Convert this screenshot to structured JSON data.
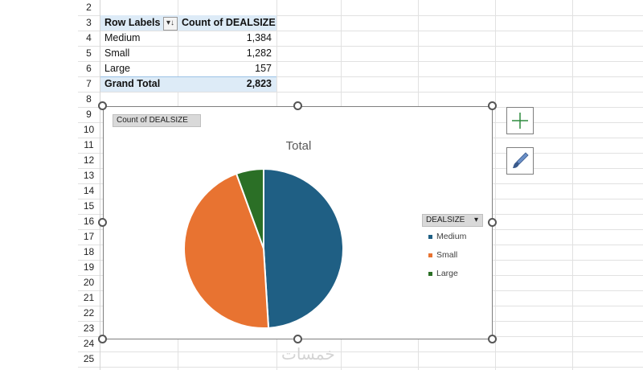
{
  "row_headers": [
    "2",
    "3",
    "4",
    "5",
    "6",
    "7",
    "8",
    "9",
    "10",
    "11",
    "12",
    "13",
    "14",
    "15",
    "16",
    "17",
    "18",
    "19",
    "20",
    "21",
    "22",
    "23",
    "24",
    "25"
  ],
  "pivot": {
    "header_label": "Row Labels",
    "header_value": "Count of DEALSIZE",
    "rows": [
      {
        "label": "Medium",
        "value": "1,384"
      },
      {
        "label": "Small",
        "value": "1,282"
      },
      {
        "label": "Large",
        "value": "157"
      }
    ],
    "total_label": "Grand Total",
    "total_value": "2,823"
  },
  "chart": {
    "value_field_button": "Count of DEALSIZE",
    "legend_field_button": "DEALSIZE",
    "colors": {
      "Medium": "#1f5f84",
      "Small": "#e87331",
      "Large": "#2b6f26"
    },
    "chart_data": {
      "type": "pie",
      "title": "Total",
      "categories": [
        "Medium",
        "Small",
        "Large"
      ],
      "values": [
        1384,
        1282,
        157
      ],
      "legend_placement": "right"
    }
  },
  "side_buttons": {
    "add_icon": "plus-icon",
    "style_icon": "paintbrush-icon"
  },
  "watermark": "خمسات"
}
